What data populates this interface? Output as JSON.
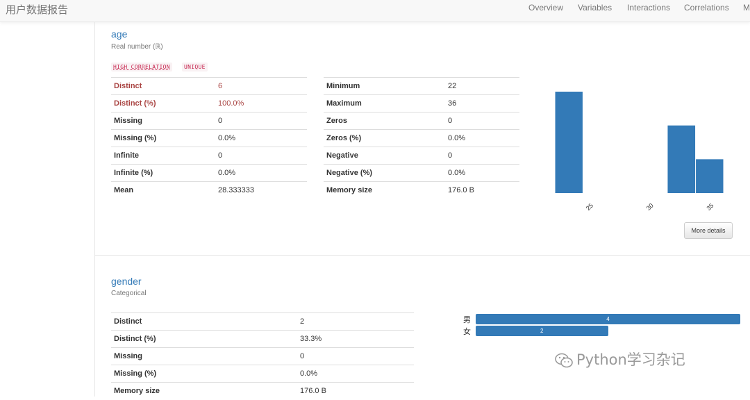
{
  "navbar": {
    "brand": "用户数据报告",
    "items": [
      "Overview",
      "Variables",
      "Interactions",
      "Correlations",
      "M"
    ]
  },
  "age": {
    "name": "age",
    "type": "Real number (ℝ)",
    "tags": [
      "HIGH CORRELATION",
      "UNIQUE"
    ],
    "stats_left": [
      {
        "k": "Distinct",
        "v": "6",
        "warn": true
      },
      {
        "k": "Distinct (%)",
        "v": "100.0%",
        "warn": true
      },
      {
        "k": "Missing",
        "v": "0"
      },
      {
        "k": "Missing (%)",
        "v": "0.0%"
      },
      {
        "k": "Infinite",
        "v": "0"
      },
      {
        "k": "Infinite (%)",
        "v": "0.0%"
      },
      {
        "k": "Mean",
        "v": "28.333333"
      }
    ],
    "stats_right": [
      {
        "k": "Minimum",
        "v": "22"
      },
      {
        "k": "Maximum",
        "v": "36"
      },
      {
        "k": "Zeros",
        "v": "0"
      },
      {
        "k": "Zeros (%)",
        "v": "0.0%"
      },
      {
        "k": "Negative",
        "v": "0"
      },
      {
        "k": "Negative (%)",
        "v": "0.0%"
      },
      {
        "k": "Memory size",
        "v": "176.0 B"
      }
    ],
    "more_details": "More details"
  },
  "gender": {
    "name": "gender",
    "type": "Categorical",
    "stats": [
      {
        "k": "Distinct",
        "v": "2"
      },
      {
        "k": "Distinct (%)",
        "v": "33.3%"
      },
      {
        "k": "Missing",
        "v": "0"
      },
      {
        "k": "Missing (%)",
        "v": "0.0%"
      },
      {
        "k": "Memory size",
        "v": "176.0 B"
      }
    ]
  },
  "chart_data": [
    {
      "type": "bar",
      "bins": [
        [
          22,
          24.33
        ],
        [
          24.33,
          26.67
        ],
        [
          26.67,
          29
        ],
        [
          29,
          31.33
        ],
        [
          31.33,
          33.67
        ],
        [
          33.67,
          36
        ]
      ],
      "values": [
        3,
        0,
        0,
        0,
        2,
        1
      ],
      "xticks": [
        "25",
        "30",
        "35"
      ],
      "xlim": [
        22,
        36
      ]
    },
    {
      "type": "bar",
      "orientation": "horizontal",
      "categories": [
        "男",
        "女"
      ],
      "values": [
        4,
        2
      ]
    }
  ],
  "watermark": "Python学习杂记",
  "colors": {
    "accent": "#337ab7",
    "warn": "#a94442"
  }
}
